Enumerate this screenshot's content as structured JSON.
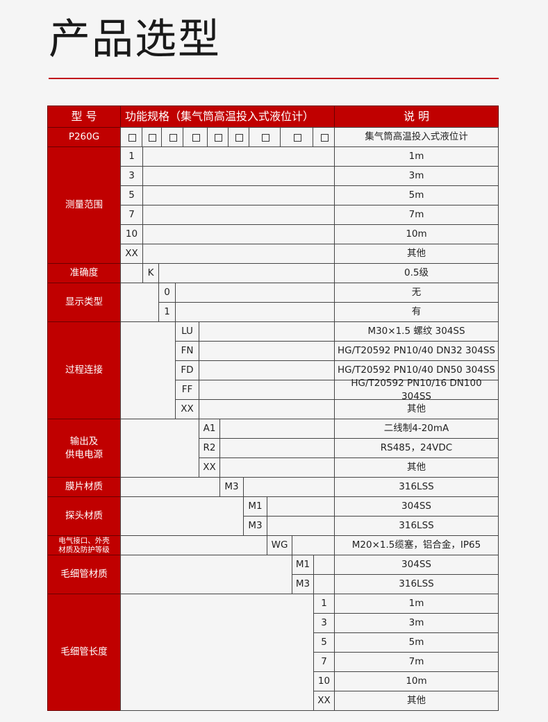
{
  "title": "产品选型",
  "header": {
    "model_col": "型 号",
    "spec_col": "功能规格（集气筒高温投入式液位计）",
    "desc_col": "说 明",
    "model": "P260G",
    "model_desc": "集气筒高温投入式液位计",
    "placeholder_box_count": 9
  },
  "groups": [
    {
      "label": "测量范围",
      "col": 0,
      "rows": [
        {
          "code": "1",
          "desc": "1m"
        },
        {
          "code": "3",
          "desc": "3m"
        },
        {
          "code": "5",
          "desc": "5m"
        },
        {
          "code": "7",
          "desc": "7m"
        },
        {
          "code": "10",
          "desc": "10m"
        },
        {
          "code": "XX",
          "desc": "其他"
        }
      ]
    },
    {
      "label": "准确度",
      "col": 1,
      "rows": [
        {
          "code": "K",
          "desc": "0.5级"
        }
      ]
    },
    {
      "label": "显示类型",
      "col": 2,
      "rows": [
        {
          "code": "0",
          "desc": "无"
        },
        {
          "code": "1",
          "desc": "有"
        }
      ]
    },
    {
      "label": "过程连接",
      "col": 3,
      "rows": [
        {
          "code": "LU",
          "desc": "M30×1.5 螺纹 304SS"
        },
        {
          "code": "FN",
          "desc": "HG/T20592 PN10/40 DN32 304SS"
        },
        {
          "code": "FD",
          "desc": "HG/T20592 PN10/40 DN50 304SS"
        },
        {
          "code": "FF",
          "desc": "HG/T20592 PN10/16 DN100 304SS"
        },
        {
          "code": "XX",
          "desc": "其他"
        }
      ]
    },
    {
      "label": "输出及\n供电电源",
      "col": 4,
      "rows": [
        {
          "code": "A1",
          "desc": "二线制4-20mA"
        },
        {
          "code": "R2",
          "desc": "RS485，24VDC"
        },
        {
          "code": "XX",
          "desc": "其他"
        }
      ]
    },
    {
      "label": "膜片材质",
      "col": 5,
      "rows": [
        {
          "code": "M3",
          "desc": "316LSS"
        }
      ]
    },
    {
      "label": "探头材质",
      "col": 6,
      "rows": [
        {
          "code": "M1",
          "desc": "304SS"
        },
        {
          "code": "M3",
          "desc": "316LSS"
        }
      ]
    },
    {
      "label": "电气接口、外壳\n材质及防护等级",
      "col": 7,
      "small": true,
      "rows": [
        {
          "code": "WG",
          "desc": "M20×1.5缆塞，铝合金，IP65"
        }
      ]
    },
    {
      "label": "毛细管材质",
      "col": 8,
      "rows": [
        {
          "code": "M1",
          "desc": "304SS"
        },
        {
          "code": "M3",
          "desc": "316LSS"
        }
      ]
    },
    {
      "label": "毛细管长度",
      "col": 9,
      "rows": [
        {
          "code": "1",
          "desc": "1m"
        },
        {
          "code": "3",
          "desc": "3m"
        },
        {
          "code": "5",
          "desc": "5m"
        },
        {
          "code": "7",
          "desc": "7m"
        },
        {
          "code": "10",
          "desc": "10m"
        },
        {
          "code": "XX",
          "desc": "其他"
        }
      ]
    }
  ],
  "colors": {
    "header_red": "#c00000",
    "rule_red": "#c0141b",
    "background": "#f5f5f5"
  }
}
